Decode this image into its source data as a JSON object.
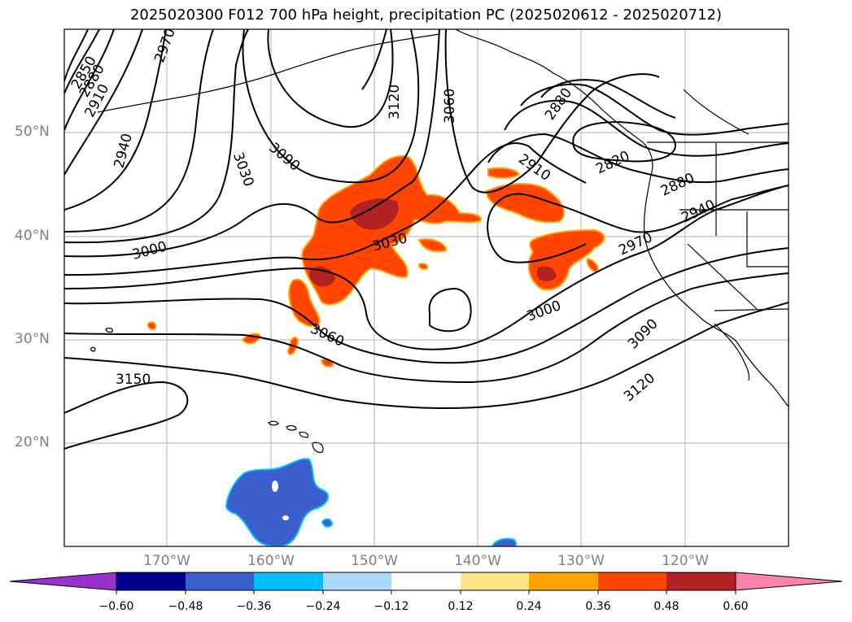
{
  "title": "2025020300 F012 700 hPa height, precipitation PC (2025020612 - 2025020712)",
  "lat_labels": [
    "50°N",
    "40°N",
    "30°N",
    "20°N"
  ],
  "lon_labels": [
    "170°W",
    "160°W",
    "150°W",
    "140°W",
    "130°W",
    "120°W"
  ],
  "contour_labels": [
    "2850",
    "2880",
    "2910",
    "2970",
    "2940",
    "3030",
    "3090",
    "3120",
    "3060",
    "2880",
    "2820",
    "2910",
    "2880",
    "2940",
    "2970",
    "3000",
    "3030",
    "3000",
    "3060",
    "3090",
    "3120",
    "3150"
  ],
  "colorbar": {
    "ticks": [
      "−0.60",
      "−0.48",
      "−0.36",
      "−0.24",
      "−0.12",
      "0.12",
      "0.24",
      "0.36",
      "0.48",
      "0.60"
    ],
    "colors": [
      "#9932cc",
      "#00008b",
      "#3a5fcd",
      "#00bfff",
      "#add8f7",
      "#ffffff",
      "#fde68a",
      "#ffa500",
      "#ff4500",
      "#b22222",
      "#ff82ab"
    ]
  },
  "colors": {
    "contour": "#000000",
    "grid": "#b0b0b0",
    "warm_fill": "#ff4500",
    "warm_edge": "#ffa500",
    "dark_fill": "#b22222",
    "cool_fill": "#3a5fcd",
    "cool_edge": "#00bfff"
  }
}
